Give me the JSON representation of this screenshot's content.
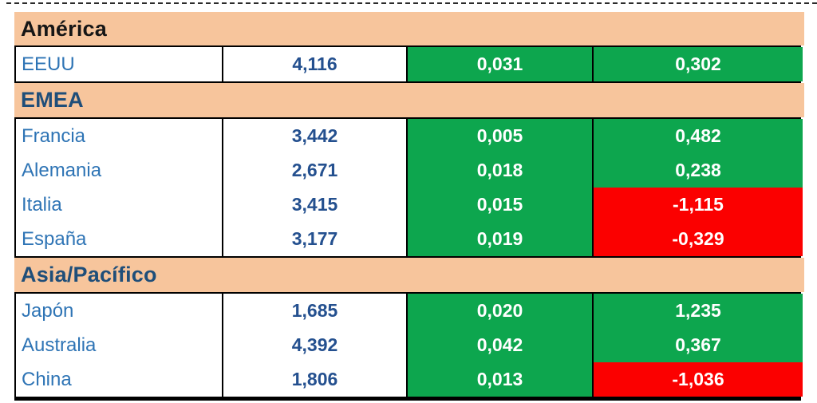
{
  "colors": {
    "band_bg": "#F7C59C",
    "positive_bg": "#0DA64E",
    "negative_bg": "#FB0000",
    "country_text": "#2E74B5",
    "value_text": "#24508F",
    "header_navy": "#1F4E79",
    "header_black": "#161616",
    "metric_text": "#FFFFFF",
    "border": "#000000"
  },
  "chart_data": {
    "type": "table",
    "layout": "three region sections, each with a peach header band; columns: country, value, metric1, metric2; metric cells conditionally colored green (positive) or red (negative)",
    "sections": [
      {
        "header": "América",
        "header_text_color": "#161616",
        "rows": [
          {
            "country": "EEUU",
            "value": "4,116",
            "change1": {
              "text": "0,031",
              "state": "green"
            },
            "change2": {
              "text": "0,302",
              "state": "green"
            }
          }
        ]
      },
      {
        "header": "EMEA",
        "header_text_color": "#1F4E79",
        "rows": [
          {
            "country": "Francia",
            "value": "3,442",
            "change1": {
              "text": "0,005",
              "state": "green"
            },
            "change2": {
              "text": "0,482",
              "state": "green"
            }
          },
          {
            "country": "Alemania",
            "value": "2,671",
            "change1": {
              "text": "0,018",
              "state": "green"
            },
            "change2": {
              "text": "0,238",
              "state": "green"
            }
          },
          {
            "country": "Italia",
            "value": "3,415",
            "change1": {
              "text": "0,015",
              "state": "green"
            },
            "change2": {
              "text": "-1,115",
              "state": "red"
            }
          },
          {
            "country": "España",
            "value": "3,177",
            "change1": {
              "text": "0,019",
              "state": "green"
            },
            "change2": {
              "text": "-0,329",
              "state": "red"
            }
          }
        ]
      },
      {
        "header": "Asia/Pacífico",
        "header_text_color": "#1F4E79",
        "rows": [
          {
            "country": "Japón",
            "value": "1,685",
            "change1": {
              "text": "0,020",
              "state": "green"
            },
            "change2": {
              "text": "1,235",
              "state": "green"
            }
          },
          {
            "country": "Australia",
            "value": "4,392",
            "change1": {
              "text": "0,042",
              "state": "green"
            },
            "change2": {
              "text": "0,367",
              "state": "green"
            }
          },
          {
            "country": "China",
            "value": "1,806",
            "change1": {
              "text": "0,013",
              "state": "green"
            },
            "change2": {
              "text": "-1,036",
              "state": "red"
            }
          }
        ]
      }
    ]
  }
}
